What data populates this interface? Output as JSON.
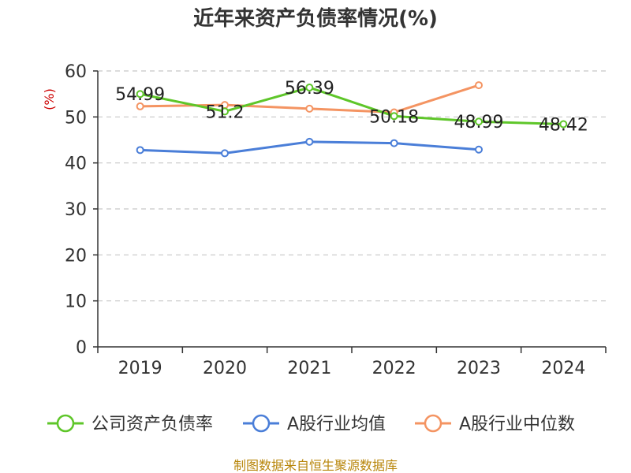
{
  "title": "近年来资产负债率情况(%)",
  "source": "制图数据来自恒生聚源数据库",
  "chart_data": {
    "type": "line",
    "ylabel": "(%)",
    "xlabel": "",
    "ylim": [
      0,
      60
    ],
    "yticks": [
      0,
      10,
      20,
      30,
      40,
      50,
      60
    ],
    "categories": [
      "2019",
      "2020",
      "2021",
      "2022",
      "2023",
      "2024"
    ],
    "grid": true,
    "legend_position": "bottom",
    "series": [
      {
        "name": "公司资产负债率",
        "color": "#5ec629",
        "values": [
          54.99,
          51.2,
          56.39,
          50.18,
          48.99,
          48.42
        ],
        "labels": [
          "54.99",
          "51.2",
          "56.39",
          "50.18",
          "48.99",
          "48.42"
        ]
      },
      {
        "name": "A股行业均值",
        "color": "#4a7ed8",
        "values": [
          42.8,
          42.1,
          44.6,
          44.3,
          42.9,
          null
        ]
      },
      {
        "name": "A股行业中位数",
        "color": "#f49462",
        "values": [
          52.3,
          52.6,
          51.8,
          51.0,
          56.9,
          null
        ]
      }
    ]
  }
}
